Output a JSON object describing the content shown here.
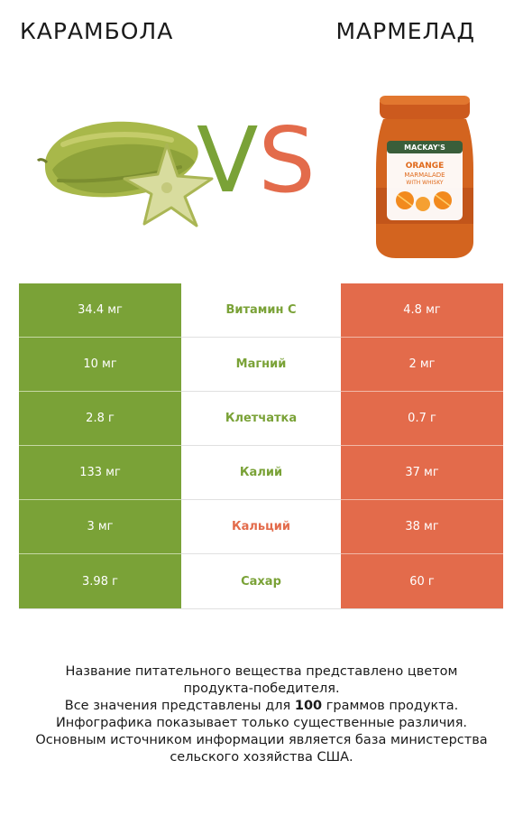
{
  "titles": {
    "left": "КАРАМБОЛА",
    "right": "МАРМЕЛАД"
  },
  "vs": {
    "v": "V",
    "s": "S"
  },
  "colors": {
    "winner_left": "#7aa237",
    "winner_right": "#e36b4b"
  },
  "jar_label": {
    "brand": "MACKAY'S",
    "line1": "ORANGE",
    "line2": "MARMALADE",
    "line3": "WITH WHISKY"
  },
  "rows": [
    {
      "left": "34.4 мг",
      "name": "Витамин C",
      "right": "4.8 мг",
      "winner": "left"
    },
    {
      "left": "10 мг",
      "name": "Магний",
      "right": "2 мг",
      "winner": "left"
    },
    {
      "left": "2.8 г",
      "name": "Клетчатка",
      "right": "0.7 г",
      "winner": "left"
    },
    {
      "left": "133 мг",
      "name": "Калий",
      "right": "37 мг",
      "winner": "left"
    },
    {
      "left": "3 мг",
      "name": "Кальций",
      "right": "38 мг",
      "winner": "right"
    },
    {
      "left": "3.98 г",
      "name": "Сахар",
      "right": "60 г",
      "winner": "left"
    }
  ],
  "footer": {
    "line1": "Название питательного вещества представлено цветом",
    "line2": "продукта-победителя.",
    "line3_pre": "Все значения представлены для ",
    "line3_bold": "100",
    "line3_post": " граммов продукта.",
    "line4": "Инфографика показывает только существенные различия.",
    "line5": "Основным источником информации является база министерства",
    "line6": "сельского хозяйства США."
  }
}
